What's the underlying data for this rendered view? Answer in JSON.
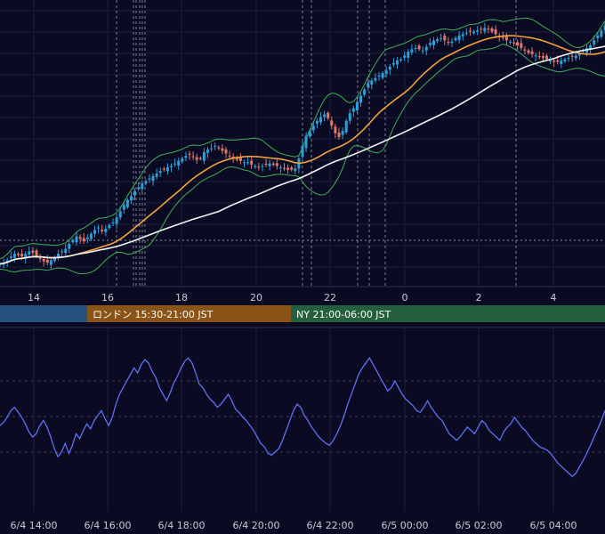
{
  "chart_data": [
    {
      "type": "candlestick",
      "x_ticks": [
        "14",
        "16",
        "18",
        "20",
        "22",
        "0",
        "2",
        "4"
      ],
      "sessions": [
        {
          "name": "",
          "color": "#27527f"
        },
        {
          "name": "ロンドン 15:30-21:00 JST",
          "color": "#8a5416"
        },
        {
          "name": "NY 21:00-06:00 JST",
          "color": "#24603c"
        }
      ],
      "indicators": {
        "bollinger_color": "#3fae55",
        "ma_short_color": "#f4a23a",
        "ma_long_color": "#f2f2f2",
        "up_color": "#2e9fd6",
        "down_color": "#e0786a"
      },
      "y_range": [
        0,
        100
      ],
      "close": [
        66,
        67,
        69,
        72,
        74,
        73,
        72,
        74,
        76,
        75,
        72,
        70,
        68,
        67,
        69,
        71,
        74,
        76,
        78,
        82,
        85,
        88,
        86,
        84,
        87,
        90,
        93,
        95,
        92,
        94,
        97,
        99,
        103,
        108,
        113,
        117,
        120,
        124,
        127,
        130,
        132,
        134,
        136,
        138,
        140,
        141,
        143,
        144,
        146,
        148,
        150,
        152,
        153,
        151,
        149,
        150,
        155,
        157,
        158,
        160,
        158,
        156,
        154,
        152,
        150,
        149,
        148,
        147,
        147,
        145,
        144,
        143,
        144,
        145,
        146,
        145,
        144,
        143,
        142,
        141,
        141,
        142,
        150,
        160,
        168,
        172,
        176,
        180,
        183,
        185,
        182,
        176,
        170,
        167,
        172,
        180,
        186,
        190,
        195,
        200,
        205,
        210,
        212,
        214,
        216,
        218,
        220,
        223,
        226,
        228,
        229,
        232,
        235,
        237,
        238,
        237,
        236,
        239,
        242,
        244,
        245,
        246,
        244,
        242,
        243,
        246,
        248,
        249,
        250,
        251,
        251,
        252,
        253,
        254,
        253,
        251,
        249,
        247,
        246,
        244,
        243,
        242,
        240,
        238,
        236,
        234,
        233,
        232,
        231,
        230,
        229,
        228,
        227,
        227,
        228,
        229,
        230,
        231,
        232,
        234,
        236,
        238,
        240,
        244,
        248,
        252,
        256
      ],
      "ma_note_hidden": true
    },
    {
      "type": "line",
      "series_color": "#5f6ff2",
      "values": [
        47,
        49,
        52,
        56,
        58,
        55,
        52,
        48,
        43,
        40,
        42,
        47,
        50,
        46,
        40,
        33,
        28,
        31,
        36,
        30,
        35,
        42,
        39,
        44,
        48,
        45,
        50,
        53,
        56,
        51,
        47,
        52,
        60,
        66,
        70,
        74,
        78,
        82,
        79,
        84,
        87,
        85,
        80,
        76,
        70,
        66,
        62,
        67,
        73,
        77,
        82,
        86,
        88,
        85,
        79,
        72,
        70,
        66,
        63,
        61,
        58,
        60,
        63,
        66,
        62,
        57,
        55,
        52,
        50,
        47,
        44,
        40,
        36,
        34,
        30,
        29,
        31,
        33,
        38,
        44,
        50,
        56,
        60,
        58,
        53,
        50,
        46,
        43,
        40,
        38,
        36,
        35,
        38,
        42,
        47,
        53,
        60,
        66,
        72,
        78,
        82,
        85,
        88,
        84,
        80,
        76,
        72,
        68,
        70,
        74,
        70,
        66,
        63,
        61,
        59,
        56,
        55,
        58,
        62,
        58,
        55,
        52,
        50,
        46,
        42,
        40,
        38,
        40,
        43,
        46,
        44,
        42,
        46,
        50,
        48,
        44,
        42,
        40,
        38,
        43,
        46,
        48,
        52,
        49,
        46,
        44,
        41,
        38,
        36,
        34,
        33,
        32,
        30,
        27,
        24,
        22,
        20,
        18,
        16,
        18,
        22,
        26,
        30,
        35,
        40,
        45,
        50,
        56
      ]
    }
  ],
  "bottom_axis": [
    "6/4 14:00",
    "6/4 16:00",
    "6/4 18:00",
    "6/4 20:00",
    "6/4 22:00",
    "6/5 00:00",
    "6/5 02:00",
    "6/5 04:00"
  ]
}
